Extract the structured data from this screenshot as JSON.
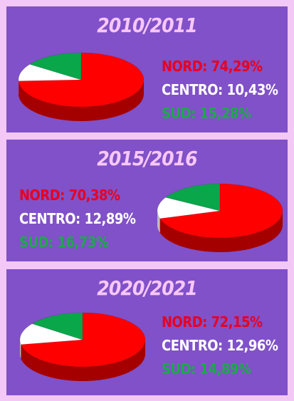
{
  "chart_data": [
    {
      "type": "pie",
      "title": "2010/2011",
      "labels": [
        "NORD",
        "CENTRO",
        "SUD"
      ],
      "values": [
        74.29,
        10.43,
        15.28
      ],
      "value_labels": [
        "74,29%",
        "10,43%",
        "15,28%"
      ],
      "colors": [
        "#ff0000",
        "#ffffff",
        "#0aa64a"
      ]
    },
    {
      "type": "pie",
      "title": "2015/2016",
      "labels": [
        "NORD",
        "CENTRO",
        "SUD"
      ],
      "values": [
        70.38,
        12.89,
        16.73
      ],
      "value_labels": [
        "70,38%",
        "12,89%",
        "16,73%"
      ],
      "colors": [
        "#ff0000",
        "#ffffff",
        "#0aa64a"
      ]
    },
    {
      "type": "pie",
      "title": "2020/2021",
      "labels": [
        "NORD",
        "CENTRO",
        "SUD"
      ],
      "values": [
        72.15,
        12.96,
        14.89
      ],
      "value_labels": [
        "72,15%",
        "12,96%",
        "14,89%"
      ],
      "colors": [
        "#ff0000",
        "#ffffff",
        "#0aa64a"
      ]
    }
  ],
  "legend_items": [
    [
      "NORD: 74,29%",
      "CENTRO: 10,43%",
      "SUD: 15,28%"
    ],
    [
      "NORD: 70,38%",
      "CENTRO: 12,89%",
      "SUD: 16,73%"
    ],
    [
      "NORD: 72,15%",
      "CENTRO: 12,96%",
      "SUD: 14,89%"
    ]
  ],
  "colors": {
    "background": "#f3c8f6",
    "panel": "#8051c8",
    "title": "#f7c7f8",
    "nord_text": "#e8001f",
    "centro_text": "#ffffff",
    "sud_text": "#1ea84c"
  }
}
